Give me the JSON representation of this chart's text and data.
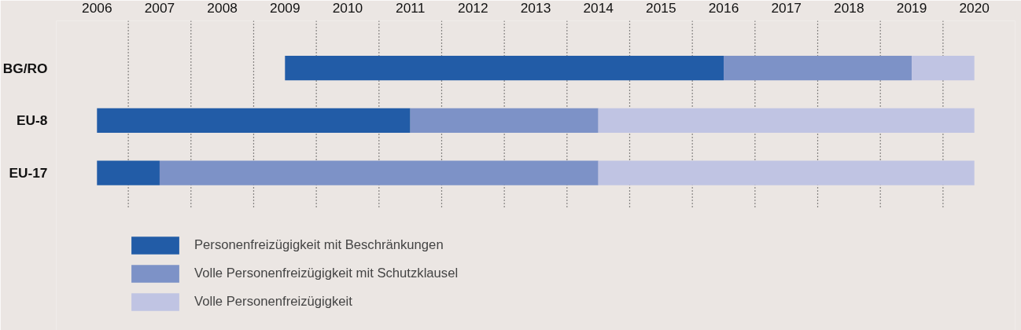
{
  "chart_data": {
    "type": "bar",
    "orientation": "horizontal",
    "categories": [
      "BG/RO",
      "EU-8",
      "EU-17"
    ],
    "series": [
      {
        "name": "Personenfreizügigkeit mit Beschränkungen",
        "color": "#225ca7",
        "base": [
          2009.5,
          2006.5,
          2006.5
        ],
        "values": [
          7,
          5,
          1
        ]
      },
      {
        "name": "Volle Personenfreizügigkeit mit Schutzklausel",
        "color": "#7d92c7",
        "base": [
          2016.5,
          2011.5,
          2007.5
        ],
        "values": [
          3,
          3,
          7
        ]
      },
      {
        "name": "Volle Personenfreizügigkeit",
        "color": "#c0c4e3",
        "base": [
          2019.5,
          2014.5,
          2014.5
        ],
        "values": [
          1,
          6,
          6
        ]
      }
    ],
    "xlim": [
      2005.85,
      2021.15
    ],
    "xticks": [
      {
        "value": 2006.5,
        "label": "2006"
      },
      {
        "value": 2007.5,
        "label": "2007"
      },
      {
        "value": 2008.5,
        "label": "2008"
      },
      {
        "value": 2009.5,
        "label": "2009"
      },
      {
        "value": 2010.5,
        "label": "2010"
      },
      {
        "value": 2011.5,
        "label": "2011"
      },
      {
        "value": 2012.5,
        "label": "2012"
      },
      {
        "value": 2013.5,
        "label": "2013"
      },
      {
        "value": 2014.5,
        "label": "2014"
      },
      {
        "value": 2015.5,
        "label": "2015"
      },
      {
        "value": 2016.5,
        "label": "2016"
      },
      {
        "value": 2017.5,
        "label": "2017"
      },
      {
        "value": 2018.5,
        "label": "2018"
      },
      {
        "value": 2019.5,
        "label": "2019"
      },
      {
        "value": 2020.5,
        "label": "2020"
      }
    ],
    "ref_lines": [
      {
        "axis": "x",
        "value": 2007,
        "line_style": "dotted"
      },
      {
        "axis": "x",
        "value": 2008,
        "line_style": "dotted"
      },
      {
        "axis": "x",
        "value": 2009,
        "line_style": "dotted"
      },
      {
        "axis": "x",
        "value": 2010,
        "line_style": "dotted"
      },
      {
        "axis": "x",
        "value": 2011,
        "line_style": "dotted"
      },
      {
        "axis": "x",
        "value": 2012,
        "line_style": "dotted"
      },
      {
        "axis": "x",
        "value": 2013,
        "line_style": "dotted"
      },
      {
        "axis": "x",
        "value": 2014,
        "line_style": "dotted"
      },
      {
        "axis": "x",
        "value": 2015,
        "line_style": "dotted"
      },
      {
        "axis": "x",
        "value": 2016,
        "line_style": "dotted"
      },
      {
        "axis": "x",
        "value": 2017,
        "line_style": "dotted"
      },
      {
        "axis": "x",
        "value": 2018,
        "line_style": "dotted"
      },
      {
        "axis": "x",
        "value": 2019,
        "line_style": "dotted"
      },
      {
        "axis": "x",
        "value": 2020,
        "line_style": "dotted"
      }
    ],
    "legend": "bottom left"
  }
}
